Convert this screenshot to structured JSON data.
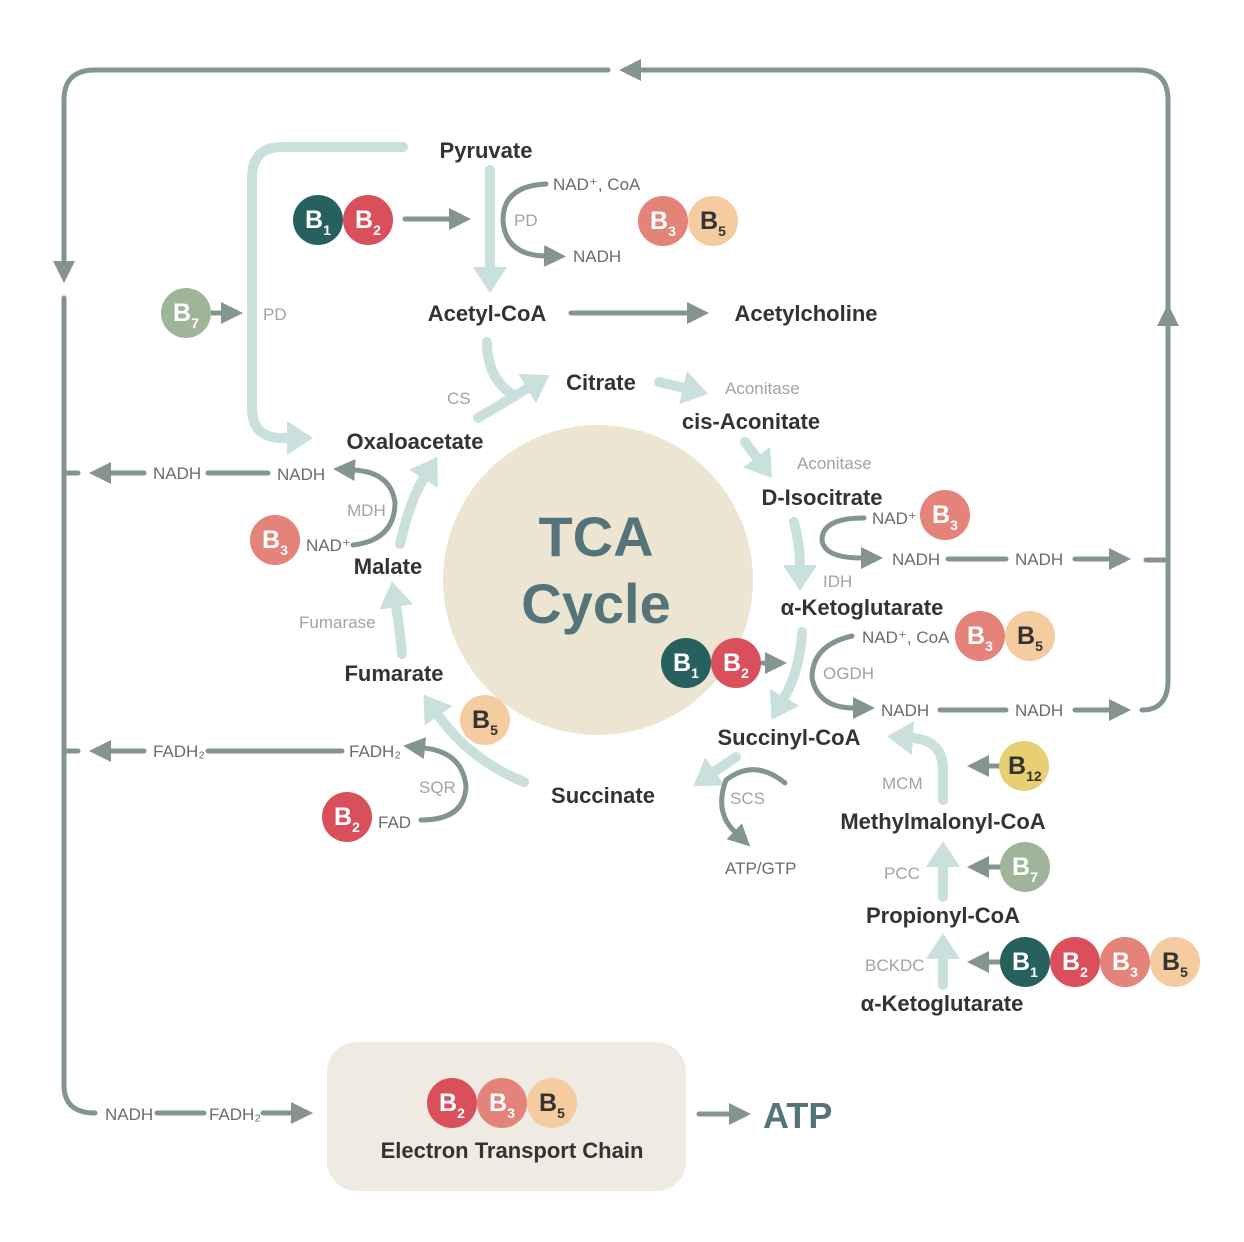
{
  "colors": {
    "B1": "#27615f",
    "B2": "#d9505c",
    "B3": "#e4837a",
    "B5": "#f5cba0",
    "B7": "#9fb59a",
    "B12": "#e8cf72",
    "arrow": "#84958f",
    "arrow_light": "#c9e0dc",
    "cycle": "#ebe5d2",
    "etc_box": "#efebe2"
  },
  "center": {
    "line1": "TCA",
    "line2": "Cycle"
  },
  "metabolites": {
    "pyruvate": "Pyruvate",
    "acetyl_coa": "Acetyl-CoA",
    "acetylcholine": "Acetylcholine",
    "citrate": "Citrate",
    "cis_aconitate": "cis-Aconitate",
    "d_isocitrate": "D-Isocitrate",
    "a_ketoglutarate": "α-Ketoglutarate",
    "succinyl_coa": "Succinyl-CoA",
    "succinate": "Succinate",
    "fumarate": "Fumarate",
    "malate": "Malate",
    "oxaloacetate": "Oxaloacetate",
    "methylmalonyl_coa": "Methylmalonyl-CoA",
    "propionyl_coa": "Propionyl-CoA",
    "a_ketoglutarate_2": "α-Ketoglutarate"
  },
  "enzymes": {
    "pd": "PD",
    "pd_2": "PD",
    "cs": "CS",
    "aconitase": "Aconitase",
    "aconitase_2": "Aconitase",
    "idh": "IDH",
    "ogdh": "OGDH",
    "scs": "SCS",
    "mcm": "MCM",
    "pcc": "PCC",
    "bckdc": "BCKDC",
    "fumarase": "Fumarase",
    "mdh": "MDH",
    "sqr": "SQR"
  },
  "cofactors": {
    "pd_in": "NAD⁺, CoA",
    "pd_out": "NADH",
    "idh_in": "NAD⁺",
    "idh_out": "NADH",
    "idh_out_2": "NADH",
    "ogdh_in": "NAD⁺, CoA",
    "ogdh_out": "NADH",
    "ogdh_out_2": "NADH",
    "scs_out": "ATP/GTP",
    "mdh_out": "NADH",
    "mdh_in": "NAD⁺",
    "mdh_out_2": "NADH",
    "sqr_out": "FADH₂",
    "sqr_out_2": "FADH₂",
    "sqr_in": "FAD",
    "etc_in_1": "NADH",
    "etc_in_2": "FADH₂"
  },
  "etc": {
    "label": "Electron Transport Chain",
    "output": "ATP"
  },
  "vitamin_groups": {
    "pd": [
      "B1",
      "B2"
    ],
    "pd_2": [
      "B3",
      "B5"
    ],
    "pd_bypass": [
      "B7"
    ],
    "mdh": [
      "B3"
    ],
    "idh": [
      "B3"
    ],
    "ogdh": [
      "B3",
      "B5"
    ],
    "ogdh_2": [
      "B1",
      "B2"
    ],
    "scs": [
      "B5"
    ],
    "mcm": [
      "B12"
    ],
    "sqr": [
      "B2"
    ],
    "pcc": [
      "B7"
    ],
    "bckdc": [
      "B1",
      "B2",
      "B3",
      "B5"
    ],
    "etc": [
      "B2",
      "B3",
      "B5"
    ]
  }
}
